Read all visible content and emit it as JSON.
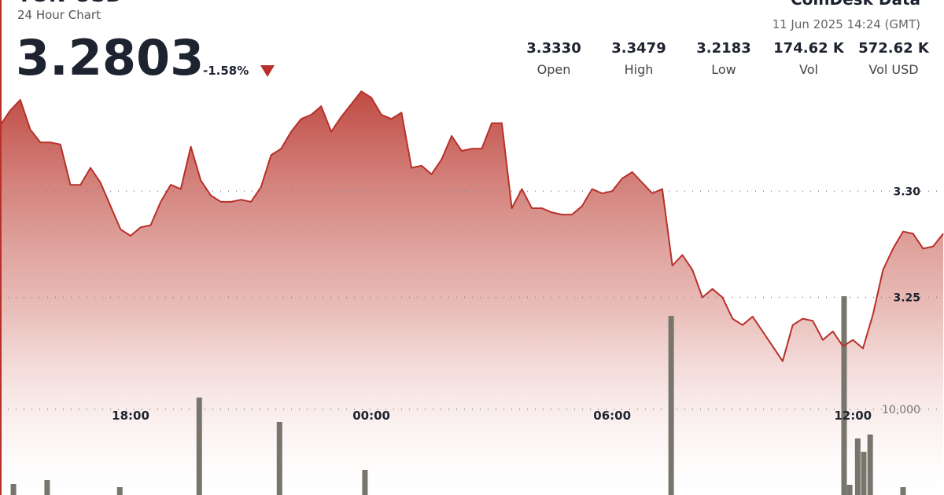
{
  "header": {
    "title": "TON-USD",
    "subtitle": "24 Hour Chart",
    "price": 3.2803,
    "change": "-1.58%",
    "brand": "CoinDesk Data",
    "timestamp": "11 Jun 2025 14:24 (GMT)",
    "stats": [
      {
        "value": "3.3330",
        "label": "Open"
      },
      {
        "value": "3.3479",
        "label": "High"
      },
      {
        "value": "3.2183",
        "label": "Low"
      },
      {
        "value": "174.62 K",
        "label": "Vol"
      },
      {
        "value": "572.62 K",
        "label": "Vol USD"
      }
    ]
  },
  "chart_data": {
    "type": "line",
    "color": "#b8302a",
    "x": [
      14.75,
      15,
      15.25,
      15.5,
      15.75,
      16,
      16.25,
      16.5,
      16.75,
      17,
      17.25,
      17.5,
      17.75,
      18,
      18.25,
      18.5,
      18.75,
      19,
      19.25,
      19.5,
      19.75,
      20,
      20.25,
      20.5,
      20.75,
      21,
      21.25,
      21.5,
      21.75,
      22,
      22.25,
      22.5,
      22.75,
      23,
      23.25,
      23.5,
      23.75,
      24,
      24.25,
      24.5,
      24.75,
      25,
      25.25,
      25.5,
      25.75,
      26,
      26.25,
      26.5,
      26.75,
      27,
      27.25,
      27.5,
      27.75,
      28,
      28.25,
      28.5,
      28.75,
      29,
      29.25,
      29.5,
      29.75,
      30,
      30.25,
      30.5,
      30.75,
      31,
      31.25,
      31.5,
      31.75,
      32,
      32.25,
      32.5,
      32.75,
      33,
      33.25,
      33.5,
      33.75,
      34,
      34.25,
      34.5,
      34.75,
      35,
      35.25,
      35.5,
      35.75,
      36,
      36.25,
      36.5,
      36.75,
      37,
      37.25,
      37.5,
      37.75,
      38,
      38.25
    ],
    "values": [
      3.331,
      3.338,
      3.343,
      3.329,
      3.323,
      3.323,
      3.322,
      3.303,
      3.303,
      3.311,
      3.304,
      3.293,
      3.282,
      3.279,
      3.283,
      3.284,
      3.295,
      3.303,
      3.301,
      3.321,
      3.305,
      3.298,
      3.295,
      3.295,
      3.296,
      3.295,
      3.302,
      3.317,
      3.32,
      3.328,
      3.334,
      3.336,
      3.34,
      3.328,
      3.335,
      3.341,
      3.347,
      3.344,
      3.336,
      3.334,
      3.337,
      3.311,
      3.312,
      3.308,
      3.315,
      3.326,
      3.319,
      3.32,
      3.32,
      3.332,
      3.332,
      3.292,
      3.301,
      3.292,
      3.292,
      3.29,
      3.289,
      3.289,
      3.293,
      3.301,
      3.299,
      3.3,
      3.306,
      3.309,
      3.304,
      3.299,
      3.301,
      3.265,
      3.27,
      3.263,
      3.25,
      3.254,
      3.25,
      3.24,
      3.237,
      3.241,
      3.234,
      3.227,
      3.22,
      3.237,
      3.24,
      3.239,
      3.23,
      3.234,
      3.227,
      3.23,
      3.226,
      3.242,
      3.263,
      3.273,
      3.281,
      3.28,
      3.273,
      3.274,
      3.28
    ],
    "xlim": [
      14.745,
      38.27
    ],
    "ylim": [
      3.157,
      3.39
    ],
    "xticks": [
      {
        "value": 18,
        "label": "18:00"
      },
      {
        "value": 24,
        "label": "00:00"
      },
      {
        "value": 30,
        "label": "06:00"
      },
      {
        "value": 36,
        "label": "12:00"
      }
    ],
    "yticks": [
      {
        "value": 3.3,
        "label": "3.30"
      },
      3.25
    ],
    "volume": {
      "color": "#77756c",
      "x": [
        15.08,
        15.92,
        17.73,
        19.71,
        21.71,
        23.84,
        31.47,
        35.78,
        35.92,
        36.12,
        36.27,
        36.43,
        37.25
      ],
      "values": [
        1284,
        1743,
        917,
        11376,
        8532,
        2936,
        20917,
        23211,
        1193,
        6606,
        5046,
        7064,
        917
      ]
    },
    "y2lim": [
      0,
      57800
    ],
    "y2ticks": [
      {
        "value": 10000,
        "label": "10,000"
      }
    ],
    "grid": true
  }
}
